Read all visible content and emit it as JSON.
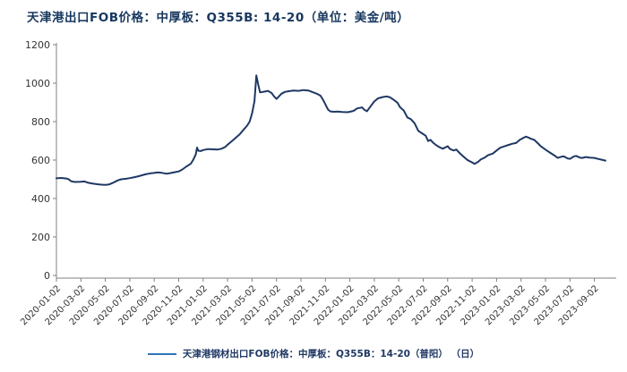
{
  "title": "天津港出口FOB价格：中厚板：Q355B: 14-20（单位：美金/吨）",
  "colors": {
    "title_text": "#17375e",
    "series_line": "#1f3864",
    "legend_marker": "#2e75b6",
    "axis_line": "#808080",
    "tick_label": "#333333"
  },
  "chart_data": {
    "type": "line",
    "title": "天津港出口FOB价格：中厚板：Q355B: 14-20（单位：美金/吨）",
    "xlabel": "",
    "ylabel": "",
    "ylim": [
      0,
      1200
    ],
    "y_ticks": [
      0,
      200,
      400,
      600,
      800,
      1000,
      1200
    ],
    "grid": false,
    "legend_position": "bottom-center",
    "x_tick_labels": [
      "2020-01-02",
      "2020-03-02",
      "2020-05-02",
      "2020-07-02",
      "2020-09-02",
      "2020-11-02",
      "2021-01-02",
      "2021-03-02",
      "2021-05-02",
      "2021-07-02",
      "2021-09-02",
      "2021-11-02",
      "2022-01-02",
      "2022-03-02",
      "2022-05-02",
      "2022-07-02",
      "2022-09-02",
      "2022-11-02",
      "2023-01-02",
      "2023-03-02",
      "2023-05-02",
      "2023-07-02",
      "2023-09-02"
    ],
    "x_unit": "months_since_2020-01-02",
    "series": [
      {
        "name": "天津港钢材出口FOB价格：中厚板：Q355B：14-20（普阳） （日）",
        "color": "#1f3864",
        "points": [
          [
            0,
            505
          ],
          [
            0.4,
            507
          ],
          [
            0.8,
            504
          ],
          [
            1,
            500
          ],
          [
            1.2,
            490
          ],
          [
            1.5,
            486
          ],
          [
            2,
            487
          ],
          [
            2.3,
            489
          ],
          [
            2.6,
            482
          ],
          [
            3,
            477
          ],
          [
            3.4,
            474
          ],
          [
            3.7,
            472
          ],
          [
            4,
            471
          ],
          [
            4.3,
            473
          ],
          [
            4.6,
            481
          ],
          [
            5,
            494
          ],
          [
            5.3,
            500
          ],
          [
            5.7,
            503
          ],
          [
            6,
            506
          ],
          [
            6.3,
            510
          ],
          [
            6.7,
            516
          ],
          [
            7,
            521
          ],
          [
            7.3,
            526
          ],
          [
            7.7,
            531
          ],
          [
            8,
            533
          ],
          [
            8.3,
            536
          ],
          [
            8.6,
            534
          ],
          [
            9,
            529
          ],
          [
            9.3,
            532
          ],
          [
            9.7,
            537
          ],
          [
            10,
            541
          ],
          [
            10.3,
            551
          ],
          [
            10.6,
            565
          ],
          [
            11,
            582
          ],
          [
            11.2,
            603
          ],
          [
            11.4,
            630
          ],
          [
            11.5,
            665
          ],
          [
            11.6,
            649
          ],
          [
            11.8,
            647
          ],
          [
            12,
            652
          ],
          [
            12.4,
            657
          ],
          [
            12.8,
            656
          ],
          [
            13.2,
            655
          ],
          [
            13.5,
            659
          ],
          [
            13.8,
            668
          ],
          [
            14,
            680
          ],
          [
            14.3,
            696
          ],
          [
            14.6,
            712
          ],
          [
            15,
            735
          ],
          [
            15.3,
            757
          ],
          [
            15.6,
            779
          ],
          [
            15.8,
            800
          ],
          [
            16,
            843
          ],
          [
            16.2,
            906
          ],
          [
            16.35,
            1040
          ],
          [
            16.5,
            995
          ],
          [
            16.65,
            952
          ],
          [
            17,
            956
          ],
          [
            17.3,
            960
          ],
          [
            17.6,
            949
          ],
          [
            17.8,
            931
          ],
          [
            18,
            918
          ],
          [
            18.2,
            931
          ],
          [
            18.4,
            945
          ],
          [
            18.7,
            955
          ],
          [
            19,
            958
          ],
          [
            19.4,
            962
          ],
          [
            19.8,
            960
          ],
          [
            20.2,
            964
          ],
          [
            20.6,
            962
          ],
          [
            21,
            952
          ],
          [
            21.3,
            945
          ],
          [
            21.6,
            935
          ],
          [
            21.8,
            914
          ],
          [
            22,
            890
          ],
          [
            22.2,
            864
          ],
          [
            22.4,
            853
          ],
          [
            22.7,
            851
          ],
          [
            23,
            852
          ],
          [
            23.4,
            850
          ],
          [
            23.8,
            849
          ],
          [
            24,
            851
          ],
          [
            24.3,
            856
          ],
          [
            24.6,
            869
          ],
          [
            25,
            874
          ],
          [
            25.2,
            861
          ],
          [
            25.4,
            854
          ],
          [
            25.7,
            880
          ],
          [
            26,
            905
          ],
          [
            26.3,
            921
          ],
          [
            26.7,
            928
          ],
          [
            27,
            931
          ],
          [
            27.3,
            926
          ],
          [
            27.6,
            913
          ],
          [
            27.9,
            898
          ],
          [
            28.1,
            875
          ],
          [
            28.4,
            858
          ],
          [
            28.7,
            822
          ],
          [
            29,
            812
          ],
          [
            29.3,
            791
          ],
          [
            29.6,
            752
          ],
          [
            30,
            735
          ],
          [
            30.2,
            727
          ],
          [
            30.4,
            699
          ],
          [
            30.6,
            705
          ],
          [
            30.8,
            691
          ],
          [
            31,
            680
          ],
          [
            31.3,
            668
          ],
          [
            31.6,
            659
          ],
          [
            32,
            672
          ],
          [
            32.2,
            657
          ],
          [
            32.5,
            650
          ],
          [
            32.7,
            655
          ],
          [
            33,
            635
          ],
          [
            33.3,
            618
          ],
          [
            33.6,
            601
          ],
          [
            34,
            588
          ],
          [
            34.2,
            580
          ],
          [
            34.5,
            591
          ],
          [
            34.7,
            603
          ],
          [
            35,
            612
          ],
          [
            35.3,
            625
          ],
          [
            35.7,
            634
          ],
          [
            36,
            650
          ],
          [
            36.3,
            664
          ],
          [
            36.7,
            673
          ],
          [
            37,
            679
          ],
          [
            37.3,
            685
          ],
          [
            37.6,
            689
          ],
          [
            37.9,
            705
          ],
          [
            38.2,
            716
          ],
          [
            38.4,
            722
          ],
          [
            38.6,
            717
          ],
          [
            38.8,
            711
          ],
          [
            39.1,
            704
          ],
          [
            39.4,
            686
          ],
          [
            39.6,
            673
          ],
          [
            39.9,
            659
          ],
          [
            40.1,
            650
          ],
          [
            40.4,
            637
          ],
          [
            40.7,
            625
          ],
          [
            41,
            611
          ],
          [
            41.3,
            617
          ],
          [
            41.5,
            619
          ],
          [
            41.8,
            609
          ],
          [
            42,
            606
          ],
          [
            42.3,
            618
          ],
          [
            42.5,
            622
          ],
          [
            42.8,
            613
          ],
          [
            43,
            611
          ],
          [
            43.3,
            616
          ],
          [
            43.6,
            613
          ],
          [
            44,
            611
          ],
          [
            44.3,
            606
          ],
          [
            44.6,
            602
          ],
          [
            44.9,
            597
          ]
        ]
      }
    ]
  }
}
